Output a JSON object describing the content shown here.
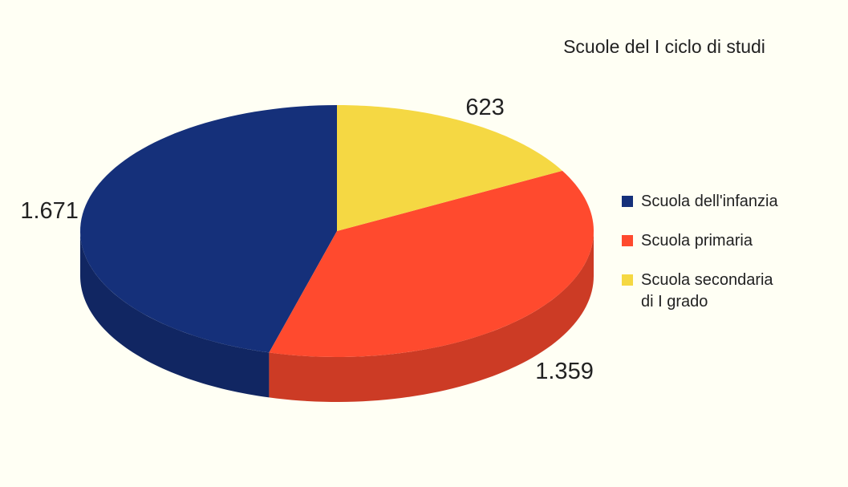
{
  "chart_data": {
    "type": "pie",
    "title": "Scuole del I ciclo di studi",
    "categories": [
      "Scuola dell'infanzia",
      "Scuola primaria",
      "Scuola secondaria di I grado"
    ],
    "values": [
      1671,
      1359,
      623
    ],
    "value_labels": [
      "1.671",
      "1.359",
      "623"
    ],
    "colors": [
      "#15307a",
      "#ff4a2e",
      "#f5d843"
    ],
    "legend": "right"
  }
}
